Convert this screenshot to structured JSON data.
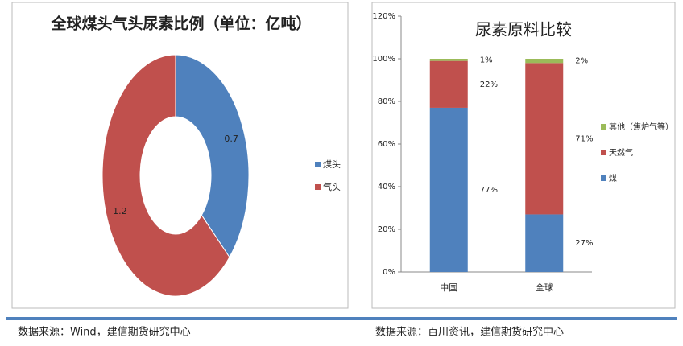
{
  "chart_data": [
    {
      "type": "donut",
      "title": "全球煤头气头尿素比例（单位：亿吨）",
      "categories": [
        "煤头",
        "气头"
      ],
      "values": [
        0.7,
        1.2
      ],
      "colors": [
        "#4f81bd",
        "#c0504d"
      ],
      "legend": "right"
    },
    {
      "type": "stacked-bar",
      "title": "尿素原料比较",
      "categories": [
        "中国",
        "全球"
      ],
      "series": [
        {
          "name": "煤",
          "color": "#4f81bd",
          "values": [
            77,
            27
          ],
          "value_labels": [
            "77%",
            "27%"
          ]
        },
        {
          "name": "天然气",
          "color": "#c0504d",
          "values": [
            22,
            71
          ],
          "value_labels": [
            "22%",
            "71%"
          ]
        },
        {
          "name": "其他（焦炉气等）",
          "color": "#9bbb59",
          "values": [
            1,
            2
          ],
          "value_labels": [
            "1%",
            "2%"
          ]
        }
      ],
      "ylim": [
        0,
        120
      ],
      "yticks": [
        {
          "value": 0,
          "label": "0%"
        },
        {
          "value": 20,
          "label": "20%"
        },
        {
          "value": 40,
          "label": "40%"
        },
        {
          "value": 60,
          "label": "60%"
        },
        {
          "value": 80,
          "label": "80%"
        },
        {
          "value": 100,
          "label": "100%"
        },
        {
          "value": 120,
          "label": "120%"
        }
      ],
      "legend": "right"
    }
  ],
  "sources": [
    "数据来源：Wind，建信期货研究中心",
    "数据来源：百川资讯，建信期货研究中心"
  ]
}
